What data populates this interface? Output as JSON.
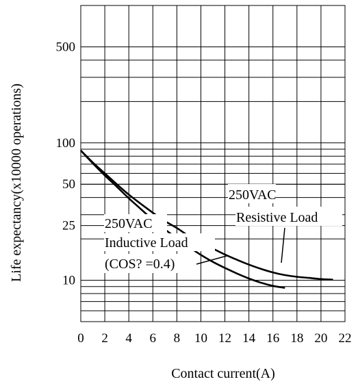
{
  "chart_data": {
    "type": "line",
    "title": "",
    "xlabel": "Contact current(A)",
    "ylabel": "Life expectancy(x10000 operations)",
    "xlim": [
      0,
      22
    ],
    "ylim": [
      5,
      1000
    ],
    "yscale": "log",
    "grid": true,
    "x_ticks": [
      0,
      2,
      4,
      6,
      8,
      10,
      12,
      14,
      16,
      18,
      20,
      22
    ],
    "x_tick_labels": [
      "0",
      "2",
      "4",
      "6",
      "8",
      "10",
      "12",
      "14",
      "16",
      "18",
      "20",
      "22"
    ],
    "y_grid_values": [
      6,
      7,
      8,
      9,
      10,
      20,
      30,
      40,
      50,
      60,
      70,
      80,
      90,
      100,
      200,
      300,
      400,
      500
    ],
    "y_ticks": [
      10,
      25,
      50,
      100,
      500
    ],
    "y_tick_labels": [
      "10",
      "25",
      "50",
      "100",
      "500"
    ],
    "series": [
      {
        "name": "250VAC Resistive Load",
        "x": [
          0,
          1,
          2,
          3,
          4,
          5,
          6,
          7,
          8,
          9,
          10,
          11,
          12,
          13,
          14,
          15,
          16,
          17,
          18,
          19,
          20,
          21
        ],
        "y": [
          88,
          72,
          60,
          50,
          42,
          36,
          31,
          27,
          24,
          21,
          18.8,
          17,
          15.4,
          14.1,
          13,
          12.1,
          11.4,
          10.9,
          10.6,
          10.4,
          10.2,
          10.1
        ]
      },
      {
        "name": "250VAC Inductive Load (COS? =0.4)",
        "x": [
          0,
          1,
          2,
          3,
          4,
          5,
          6,
          7,
          8,
          9,
          10,
          11,
          12,
          13,
          14,
          15,
          16,
          17
        ],
        "y": [
          88,
          71,
          58,
          48,
          39.5,
          33,
          27.5,
          23.5,
          20.2,
          17.5,
          15.3,
          13.6,
          12.3,
          11.2,
          10.3,
          9.6,
          9.1,
          8.8
        ]
      }
    ],
    "annotations": [
      {
        "lines": [
          "250VAC",
          "Resistive Load"
        ]
      },
      {
        "lines": [
          "250VAC",
          "Inductive Load",
          "(COS? =0.4)"
        ]
      }
    ]
  }
}
